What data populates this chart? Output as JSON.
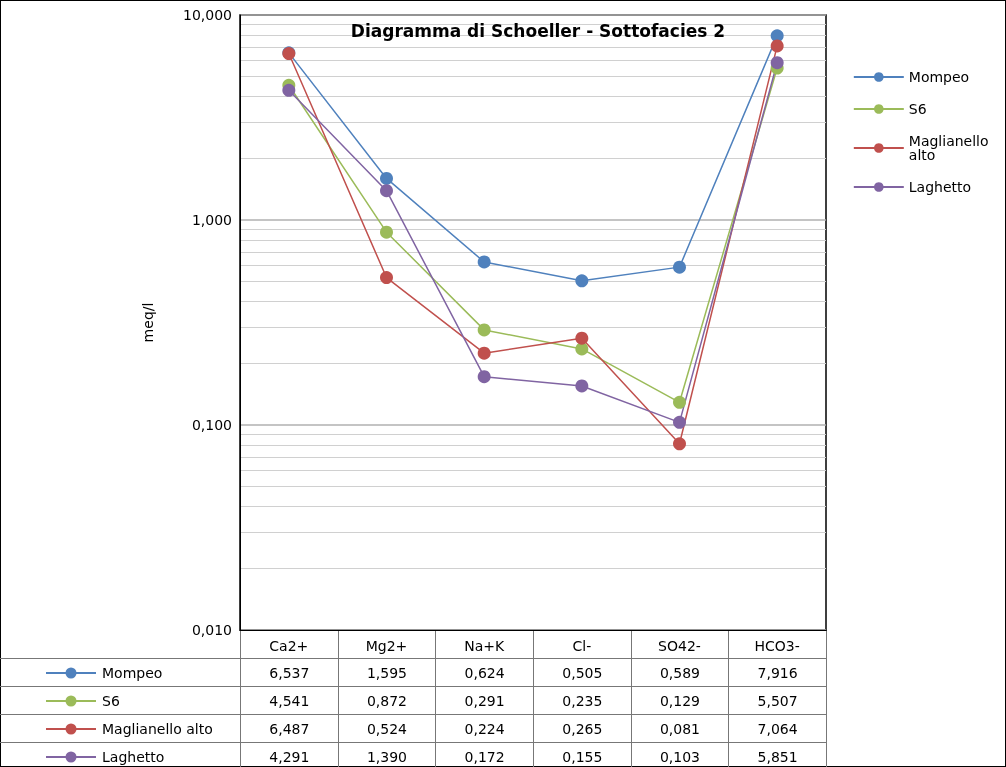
{
  "chart_data": {
    "type": "line",
    "title": "Diagramma di Schoeller - Sottofacies 2",
    "ylabel": "meq/l",
    "categories": [
      "Ca2+",
      "Mg2+",
      "Na+K",
      "Cl-",
      "SO42-",
      "HCO3-"
    ],
    "series": [
      {
        "name": "Mompeo",
        "color": "#4f81bd",
        "values": [
          6.537,
          1.595,
          0.624,
          0.505,
          0.589,
          7.916
        ],
        "value_labels": [
          "6,537",
          "1,595",
          "0,624",
          "0,505",
          "0,589",
          "7,916"
        ]
      },
      {
        "name": "S6",
        "color": "#9bbb59",
        "values": [
          4.541,
          0.872,
          0.291,
          0.235,
          0.129,
          5.507
        ],
        "value_labels": [
          "4,541",
          "0,872",
          "0,291",
          "0,235",
          "0,129",
          "5,507"
        ]
      },
      {
        "name": "Maglianello alto",
        "color": "#c0504d",
        "values": [
          6.487,
          0.524,
          0.224,
          0.265,
          0.081,
          7.064
        ],
        "value_labels": [
          "6,487",
          "0,524",
          "0,224",
          "0,265",
          "0,081",
          "7,064"
        ]
      },
      {
        "name": "Laghetto",
        "color": "#8064a2",
        "values": [
          4.291,
          1.39,
          0.172,
          0.155,
          0.103,
          5.851
        ],
        "value_labels": [
          "4,291",
          "1,390",
          "0,172",
          "0,155",
          "0,103",
          "5,851"
        ]
      }
    ],
    "log": "y",
    "ylim": [
      0.01,
      10
    ],
    "yticks": [
      {
        "value": 0.01,
        "label": "0,010"
      },
      {
        "value": 0.1,
        "label": "0,100"
      },
      {
        "value": 1,
        "label": "1,000"
      },
      {
        "value": 10,
        "label": "10,000"
      }
    ],
    "grid": "y",
    "legend": "right",
    "marker": "circle",
    "line_style": "solid"
  }
}
